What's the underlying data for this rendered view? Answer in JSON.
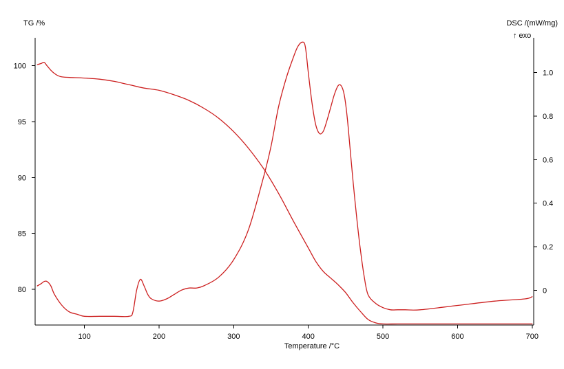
{
  "chart_data": {
    "type": "line",
    "xlabel": "Temperature /°C",
    "ylabel_left": "TG /%",
    "ylabel_right": "DSC /(mW/mg)",
    "ylabel_right_note": "↑ exo",
    "xlim": [
      34,
      702
    ],
    "ylim_left": [
      76.8,
      102.5
    ],
    "ylim_right": [
      -0.16,
      1.16
    ],
    "x_ticks": [
      100,
      200,
      300,
      400,
      500,
      600,
      700
    ],
    "y_left_ticks": [
      80,
      85,
      90,
      95,
      100
    ],
    "y_right_ticks": [
      0,
      0.2,
      0.4,
      0.6,
      0.8,
      1.0
    ],
    "y_right_tick_labels": [
      "0",
      "0.2",
      "0.4",
      "0.6",
      "0.8",
      "1.0"
    ],
    "grid": false,
    "legend": "none",
    "colors": {
      "curve": "#cc1f1f",
      "frame": "#000000"
    },
    "series": [
      {
        "axis": "left",
        "x": [
          37,
          42,
          46,
          50,
          55,
          60,
          65,
          70,
          80,
          100,
          120,
          140,
          160,
          180,
          200,
          220,
          240,
          260,
          280,
          300,
          320,
          340,
          360,
          380,
          400,
          410,
          420,
          430,
          440,
          450,
          460,
          470,
          480,
          490,
          500,
          520,
          550,
          600,
          650,
          700
        ],
        "y": [
          100.1,
          100.2,
          100.3,
          100.0,
          99.6,
          99.3,
          99.1,
          99.0,
          98.95,
          98.9,
          98.8,
          98.6,
          98.3,
          98.0,
          97.8,
          97.4,
          96.9,
          96.2,
          95.3,
          94.1,
          92.6,
          90.8,
          88.6,
          86.1,
          83.7,
          82.5,
          81.6,
          81.0,
          80.4,
          79.7,
          78.8,
          78.0,
          77.3,
          77.0,
          76.9,
          76.9,
          76.9,
          76.9,
          76.9,
          76.9
        ]
      },
      {
        "axis": "right",
        "x": [
          37,
          42,
          46,
          50,
          55,
          60,
          70,
          80,
          90,
          100,
          120,
          140,
          160,
          165,
          170,
          175,
          180,
          185,
          190,
          200,
          210,
          220,
          230,
          240,
          250,
          260,
          280,
          300,
          320,
          340,
          350,
          360,
          370,
          380,
          386,
          392,
          396,
          400,
          405,
          410,
          415,
          420,
          425,
          430,
          435,
          440,
          444,
          448,
          452,
          456,
          460,
          465,
          470,
          475,
          480,
          490,
          500,
          510,
          520,
          530,
          550,
          600,
          650,
          690,
          700
        ],
        "y": [
          0.02,
          0.03,
          0.04,
          0.04,
          0.02,
          -0.02,
          -0.07,
          -0.1,
          -0.11,
          -0.12,
          -0.12,
          -0.12,
          -0.12,
          -0.1,
          0.0,
          0.05,
          0.02,
          -0.02,
          -0.04,
          -0.05,
          -0.04,
          -0.02,
          0.0,
          0.01,
          0.01,
          0.02,
          0.06,
          0.14,
          0.28,
          0.52,
          0.66,
          0.84,
          0.97,
          1.07,
          1.12,
          1.14,
          1.12,
          1.0,
          0.86,
          0.76,
          0.72,
          0.73,
          0.78,
          0.84,
          0.9,
          0.94,
          0.94,
          0.9,
          0.8,
          0.65,
          0.5,
          0.33,
          0.18,
          0.06,
          -0.02,
          -0.06,
          -0.08,
          -0.09,
          -0.09,
          -0.09,
          -0.09,
          -0.07,
          -0.05,
          -0.04,
          -0.03
        ]
      }
    ]
  }
}
